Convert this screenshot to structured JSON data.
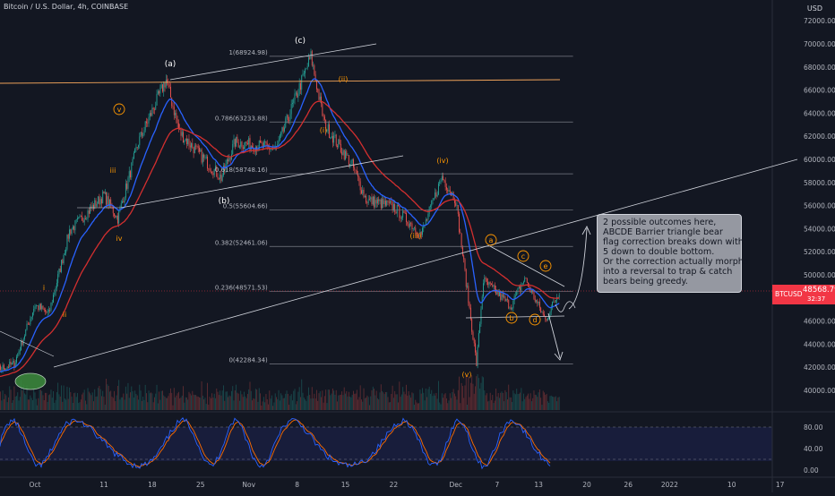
{
  "header": {
    "title": "Bitcoin / U.S. Dollar, 4h, COINBASE",
    "currency": "USD"
  },
  "price_tag": {
    "symbol": "BTCUSD",
    "price": "48568.79",
    "countdown": "32:37"
  },
  "callout": {
    "lines": [
      "2 possible outcomes  here,",
      "ABCDE Barrier triangle bear",
      "flag correction breaks down with",
      "5 down to double bottom.",
      "Or the correction actually morphs",
      "into a reversal to trap & catch",
      "bears being greedy."
    ]
  },
  "colors": {
    "background": "#131722",
    "up_candle": "#26a69a",
    "down_candle": "#ef5350",
    "ema_fast": "#2962ff",
    "ema_slow": "#d32f2f",
    "wave_labels": "#ff9800",
    "fib_lines": "#787b86",
    "stoch_k": "#2962ff",
    "stoch_d": "#ff6d00"
  },
  "chart_data": {
    "type": "candlestick",
    "title": "Bitcoin / U.S. Dollar, 4h, COINBASE",
    "yaxis": {
      "range": [
        39000,
        73500
      ],
      "ticks": [
        "72000.00",
        "70000.00",
        "68000.00",
        "66000.00",
        "64000.00",
        "62000.00",
        "60000.00",
        "58000.00",
        "56000.00",
        "54000.00",
        "52000.00",
        "50000.00",
        "48000.00",
        "46000.00",
        "44000.00",
        "42000.00",
        "40000.00"
      ]
    },
    "xaxis": {
      "ticks": [
        "Oct",
        "11",
        "18",
        "25",
        "Nov",
        "8",
        "15",
        "22",
        "Dec",
        "7",
        "13",
        "20",
        "26",
        "2022",
        "10",
        "17"
      ]
    },
    "price_path": [
      {
        "date": "2021-09-21",
        "close": 40800
      },
      {
        "date": "2021-09-28",
        "close": 42300
      },
      {
        "date": "2021-10-01",
        "close": 47400
      },
      {
        "date": "2021-10-03",
        "close": 46600
      },
      {
        "date": "2021-10-06",
        "close": 53800
      },
      {
        "date": "2021-10-11",
        "close": 56900
      },
      {
        "date": "2021-10-13",
        "close": 54900
      },
      {
        "date": "2021-10-16",
        "close": 61500
      },
      {
        "date": "2021-10-20",
        "close": 66900
      },
      {
        "date": "2021-10-22",
        "close": 62300
      },
      {
        "date": "2021-10-28",
        "close": 58400
      },
      {
        "date": "2021-10-30",
        "close": 61500
      },
      {
        "date": "2021-11-05",
        "close": 60900
      },
      {
        "date": "2021-11-10",
        "close": 68900
      },
      {
        "date": "2021-11-12",
        "close": 63000
      },
      {
        "date": "2021-11-16",
        "close": 59500
      },
      {
        "date": "2021-11-18",
        "close": 56500
      },
      {
        "date": "2021-11-22",
        "close": 55900
      },
      {
        "date": "2021-11-26",
        "close": 53500
      },
      {
        "date": "2021-11-29",
        "close": 58500
      },
      {
        "date": "2021-12-01",
        "close": 56500
      },
      {
        "date": "2021-12-04",
        "close": 42300
      },
      {
        "date": "2021-12-05",
        "close": 49500
      },
      {
        "date": "2021-12-09",
        "close": 47300
      },
      {
        "date": "2021-12-11",
        "close": 49700
      },
      {
        "date": "2021-12-14",
        "close": 46100
      },
      {
        "date": "2021-12-16",
        "close": 48568
      }
    ],
    "fib_levels": [
      {
        "label": "1(68924.98)",
        "value": 68924.98
      },
      {
        "label": "0.786(63233.88)",
        "value": 63233.88
      },
      {
        "label": "0.618(58748.16)",
        "value": 58748.16
      },
      {
        "label": "0.5(55604.66)",
        "value": 55604.66
      },
      {
        "label": "0.382(52461.06)",
        "value": 52461.06
      },
      {
        "label": "0.236(48571.53)",
        "value": 48571.53
      },
      {
        "label": "0(42284.34)",
        "value": 42284.34
      }
    ],
    "wave_labels": [
      "(a)",
      "(b)",
      "(c)",
      "(i)",
      "(ii)",
      "(iii)",
      "(iv)",
      "(v)",
      "i",
      "ii",
      "iii",
      "iv",
      "v",
      "a",
      "b",
      "c",
      "d",
      "e"
    ],
    "oscillator": {
      "type": "stochastic",
      "ticks": [
        "80.00",
        "40.00",
        "0.00"
      ],
      "upper_band": 80,
      "lower_band": 20
    }
  }
}
